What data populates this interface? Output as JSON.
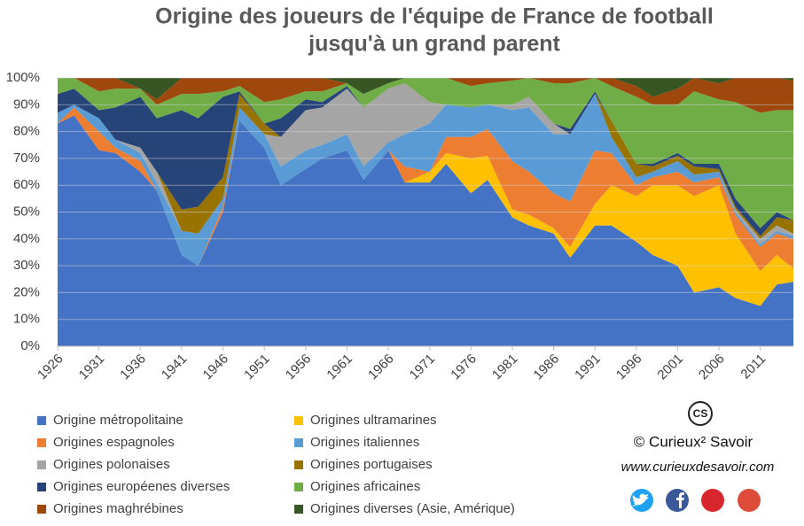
{
  "chart_data": {
    "type": "stacked_area",
    "title": "Origine des joueurs de l'équipe de France de football",
    "subtitle": "jusqu'à un grand parent",
    "x": [
      1926,
      1928,
      1931,
      1933,
      1936,
      1938,
      1941,
      1943,
      1946,
      1948,
      1951,
      1953,
      1956,
      1958,
      1961,
      1963,
      1966,
      1968,
      1971,
      1973,
      1976,
      1978,
      1981,
      1983,
      1986,
      1988,
      1991,
      1993,
      1996,
      1998,
      2001,
      2003,
      2006,
      2008,
      2011,
      2013,
      2015
    ],
    "xlim": [
      1926,
      2015
    ],
    "xticks": [
      1926,
      1931,
      1936,
      1941,
      1946,
      1951,
      1956,
      1961,
      1966,
      1971,
      1976,
      1981,
      1986,
      1991,
      1996,
      2001,
      2006,
      2011
    ],
    "ylim": [
      0,
      100
    ],
    "yticks": [
      {
        "value": 0,
        "label": "0%"
      },
      {
        "value": 10,
        "label": "10%"
      },
      {
        "value": 20,
        "label": "20%"
      },
      {
        "value": 30,
        "label": "30%"
      },
      {
        "value": 40,
        "label": "40%"
      },
      {
        "value": 50,
        "label": "50%"
      },
      {
        "value": 60,
        "label": "60%"
      },
      {
        "value": 70,
        "label": "70%"
      },
      {
        "value": 80,
        "label": "80%"
      },
      {
        "value": 90,
        "label": "90%"
      },
      {
        "value": 100,
        "label": "100%"
      }
    ],
    "grid": true,
    "legend": "bottom",
    "series": [
      {
        "name": "Origine métropolitaine",
        "color": "#4472c4",
        "values": [
          83,
          86,
          73,
          72,
          65,
          58,
          34,
          30,
          50,
          84,
          74,
          60,
          66,
          70,
          73,
          62,
          73,
          61,
          61,
          68,
          57,
          62,
          48,
          45,
          42,
          33,
          45,
          45,
          39,
          34,
          30,
          20,
          22,
          18,
          15,
          23,
          24
        ]
      },
      {
        "name": "Origines ultramarines",
        "color": "#ffc000",
        "values": [
          0,
          0,
          0,
          0,
          0,
          0,
          0,
          0,
          0,
          0,
          0,
          0,
          0,
          0,
          0,
          0,
          0,
          0,
          4,
          4,
          13,
          9,
          3,
          4,
          2,
          4,
          8,
          15,
          17,
          26,
          30,
          36,
          38,
          24,
          13,
          11,
          5
        ]
      },
      {
        "name": "Origines espagnoles",
        "color": "#ed7d31",
        "values": [
          0,
          3,
          7,
          2,
          4,
          0,
          0,
          0,
          2,
          0,
          0,
          0,
          0,
          0,
          0,
          0,
          0,
          6,
          0,
          6,
          8,
          10,
          18,
          16,
          13,
          17,
          20,
          12,
          4,
          3,
          5,
          5,
          3,
          7,
          9,
          8,
          11
        ]
      },
      {
        "name": "Origines italiennes",
        "color": "#5b9bd5",
        "values": [
          4,
          1,
          5,
          3,
          3,
          3,
          9,
          12,
          3,
          5,
          5,
          7,
          7,
          5,
          6,
          5,
          3,
          12,
          18,
          12,
          11,
          9,
          19,
          24,
          22,
          25,
          21,
          6,
          3,
          2,
          4,
          3,
          2,
          1,
          1,
          1,
          1
        ]
      },
      {
        "name": "Origines polonaises",
        "color": "#a5a5a5",
        "values": [
          0,
          0,
          0,
          0,
          2,
          4,
          0,
          0,
          0,
          0,
          0,
          11,
          15,
          14,
          17,
          22,
          20,
          19,
          8,
          0,
          0,
          0,
          2,
          4,
          4,
          0,
          0,
          0,
          0,
          0,
          0,
          0,
          0,
          1,
          2,
          2,
          1
        ]
      },
      {
        "name": "Origines portugaises",
        "color": "#997300",
        "values": [
          0,
          0,
          0,
          0,
          0,
          0,
          8,
          10,
          8,
          5,
          4,
          0,
          0,
          0,
          0,
          0,
          0,
          0,
          0,
          0,
          0,
          0,
          0,
          0,
          0,
          0,
          0,
          6,
          5,
          2,
          2,
          3,
          1,
          1,
          1,
          3,
          5
        ]
      },
      {
        "name": "Origines européenes diverses",
        "color": "#264478",
        "values": [
          7,
          6,
          3,
          12,
          19,
          20,
          37,
          33,
          30,
          1,
          0,
          7,
          4,
          2,
          1,
          0,
          0,
          0,
          0,
          0,
          0,
          0,
          0,
          0,
          0,
          2,
          1,
          0,
          0,
          1,
          1,
          1,
          2,
          3,
          3,
          2,
          0
        ]
      },
      {
        "name": "Origines africaines",
        "color": "#70ad47",
        "values": [
          6,
          4,
          7,
          7,
          3,
          5,
          6,
          9,
          2,
          2,
          8,
          7,
          3,
          4,
          1,
          5,
          2,
          2,
          9,
          10,
          8,
          8,
          9,
          7,
          15,
          17,
          5,
          13,
          25,
          22,
          18,
          27,
          24,
          36,
          43,
          38,
          41
        ]
      },
      {
        "name": "Origines maghrébines",
        "color": "#9e480e",
        "values": [
          0,
          0,
          5,
          4,
          0,
          2,
          6,
          6,
          5,
          3,
          9,
          8,
          5,
          5,
          0,
          0,
          0,
          0,
          0,
          0,
          3,
          2,
          1,
          0,
          2,
          2,
          0,
          3,
          4,
          3,
          6,
          5,
          6,
          9,
          13,
          12,
          11
        ]
      },
      {
        "name": "Origines diverses (Asie, Amérique)",
        "color": "#375623",
        "values": [
          0,
          0,
          0,
          0,
          4,
          8,
          0,
          0,
          0,
          0,
          0,
          0,
          0,
          0,
          2,
          6,
          2,
          0,
          0,
          0,
          0,
          0,
          0,
          0,
          0,
          0,
          0,
          0,
          3,
          7,
          4,
          0,
          2,
          0,
          0,
          0,
          1
        ]
      }
    ]
  },
  "branding": {
    "copyright": "© Curieux² Savoir",
    "url": "www.curieuxdesavoir.com",
    "logo": "CS"
  }
}
